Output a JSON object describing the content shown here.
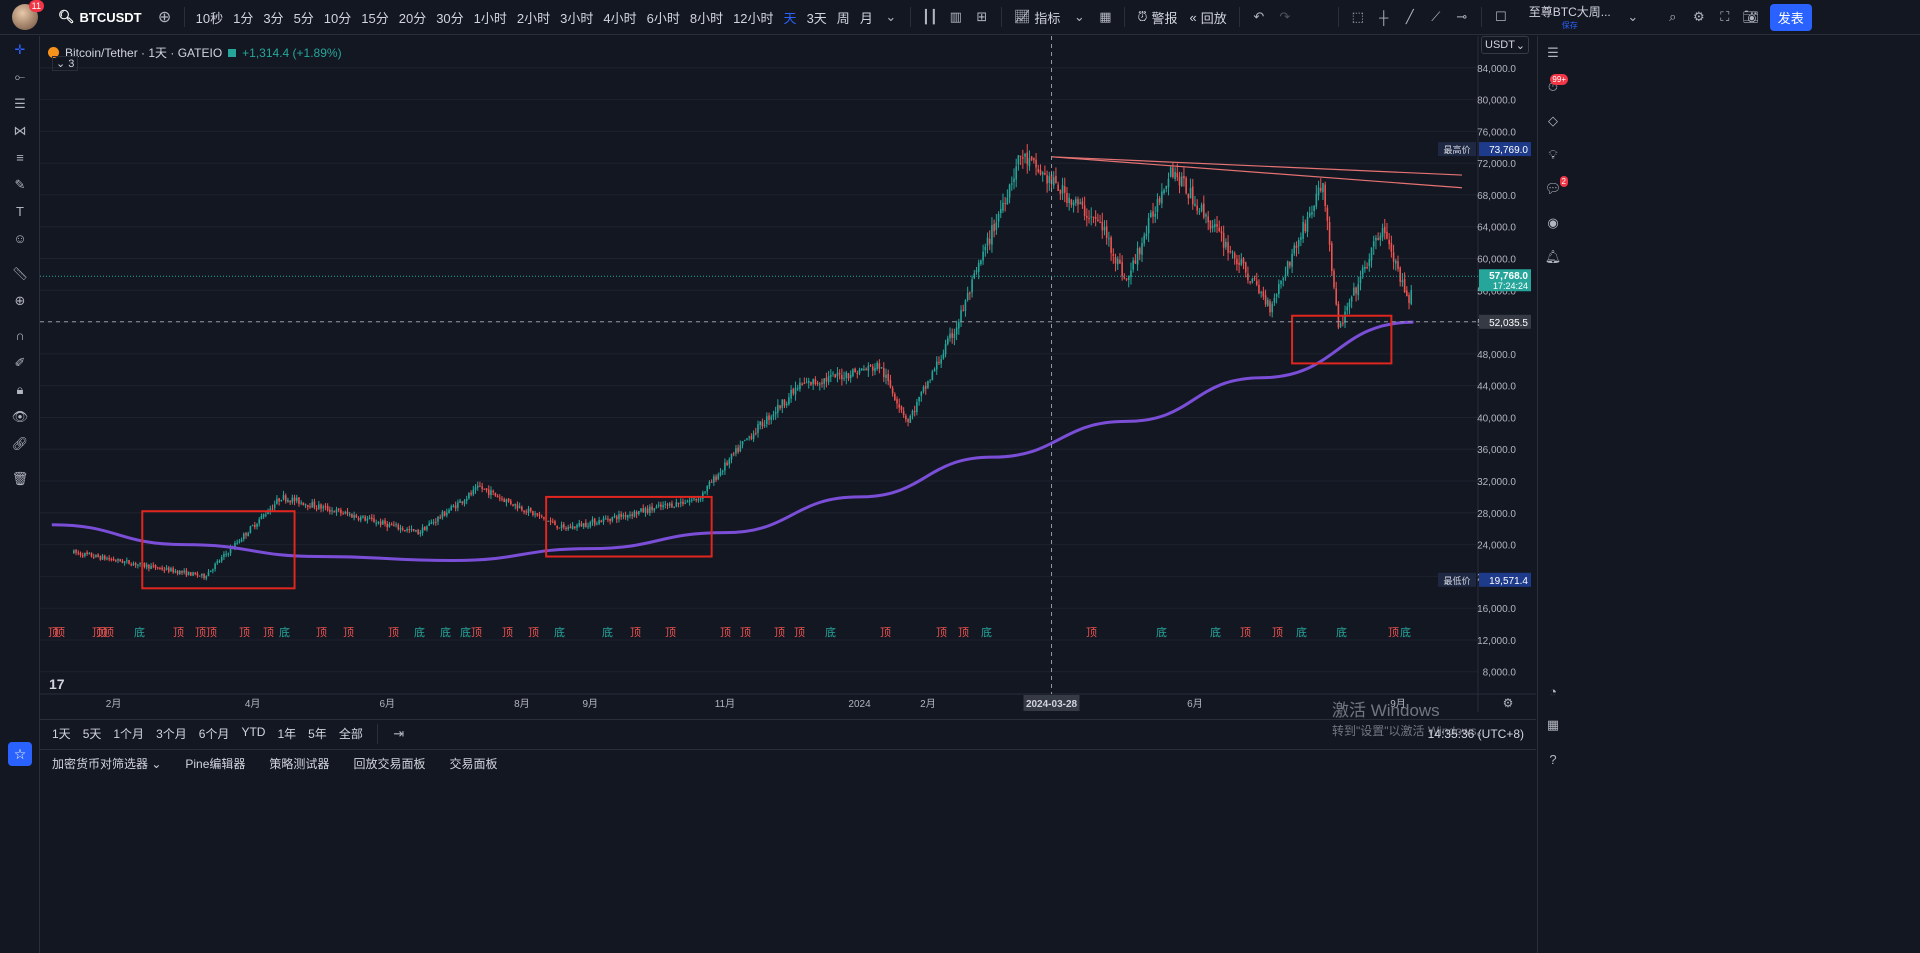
{
  "topbar": {
    "avatar_badge": "11",
    "symbol": "BTCUSDT",
    "timeframes": [
      "10秒",
      "1分",
      "3分",
      "5分",
      "10分",
      "15分",
      "20分",
      "30分",
      "1小时",
      "2小时",
      "3小时",
      "4小时",
      "6小时",
      "8小时",
      "12小时",
      "天",
      "3天",
      "周",
      "月"
    ],
    "active_timeframe": "天",
    "indicators_label": "指标",
    "alert_label": "警报",
    "replay_label": "回放",
    "layout_name": "至尊BTC大周...",
    "layout_status": "保存",
    "publish_label": "发表"
  },
  "legend": {
    "title": "Bitcoin/Tether · 1天 · GATEIO",
    "change": "+1,314.4 (+1.89%)",
    "collapsed_count": "3"
  },
  "price_axis": {
    "currency": "USDT",
    "ticks": [
      "84,000.0",
      "80,000.0",
      "76,000.0",
      "72,000.0",
      "68,000.0",
      "64,000.0",
      "60,000.0",
      "56,000.0",
      "52,000.0",
      "48,000.0",
      "44,000.0",
      "40,000.0",
      "36,000.0",
      "32,000.0",
      "28,000.0",
      "24,000.0",
      "20,000.0",
      "16,000.0",
      "12,000.0",
      "8,000.0"
    ],
    "high_label": "最高价",
    "high_value": "73,769.0",
    "last_price": "57,768.0",
    "countdown": "17:24:24",
    "crosshair_price": "52,035.5",
    "low_label": "最低价",
    "low_value": "19,571.4"
  },
  "time_axis": {
    "labels": [
      "2月",
      "4月",
      "6月",
      "8月",
      "9月",
      "11月",
      "2024",
      "2月",
      "6月",
      "9月"
    ],
    "crosshair_date": "2024-03-28"
  },
  "signals": {
    "top_text": "顶",
    "bottom_text": "底"
  },
  "bottombar": {
    "ranges": [
      "1天",
      "5天",
      "1个月",
      "3个月",
      "6个月",
      "YTD",
      "1年",
      "5年",
      "全部"
    ],
    "clock": "14:35:36 (UTC+8)"
  },
  "panels": [
    "加密货币对筛选器",
    "Pine编辑器",
    "策略测试器",
    "回放交易面板",
    "交易面板"
  ],
  "right_toolbar": {
    "notif_badge": "99+",
    "chat_badge": "2"
  },
  "watermark": {
    "line1": "激活 Windows",
    "line2": "转到\"设置\"以激活 Windows。"
  },
  "colors": {
    "background": "#131722",
    "up": "#26a69a",
    "down": "#ef5350",
    "ma": "#7b4ed8",
    "box": "#e0261e",
    "accent": "#2962ff"
  },
  "chart_data": {
    "type": "candlestick",
    "title": "Bitcoin/Tether · 1天 · GATEIO",
    "ylim": [
      5200,
      88000
    ],
    "key_points": [
      {
        "date": "2023-01-10",
        "price": 23000
      },
      {
        "date": "2023-03-10",
        "price": 20000
      },
      {
        "date": "2023-04-14",
        "price": 30000
      },
      {
        "date": "2023-06-15",
        "price": 25500
      },
      {
        "date": "2023-07-13",
        "price": 31200
      },
      {
        "date": "2023-08-20",
        "price": 26000
      },
      {
        "date": "2023-10-20",
        "price": 29800
      },
      {
        "date": "2023-11-10",
        "price": 37000
      },
      {
        "date": "2023-12-05",
        "price": 44000
      },
      {
        "date": "2024-01-10",
        "price": 46500
      },
      {
        "date": "2024-01-23",
        "price": 39500
      },
      {
        "date": "2024-02-14",
        "price": 51500
      },
      {
        "date": "2024-03-14",
        "price": 73000
      },
      {
        "date": "2024-04-20",
        "price": 64000
      },
      {
        "date": "2024-05-01",
        "price": 57000
      },
      {
        "date": "2024-05-21",
        "price": 71500
      },
      {
        "date": "2024-07-05",
        "price": 54000
      },
      {
        "date": "2024-07-29",
        "price": 69500
      },
      {
        "date": "2024-08-05",
        "price": 51000
      },
      {
        "date": "2024-08-25",
        "price": 64000
      },
      {
        "date": "2024-09-06",
        "price": 54000
      },
      {
        "date": "2024-09-08",
        "price": 57768
      }
    ],
    "moving_average": [
      {
        "date": "2022-12-31",
        "price": 26500
      },
      {
        "date": "2023-03-01",
        "price": 24000
      },
      {
        "date": "2023-05-01",
        "price": 22500
      },
      {
        "date": "2023-07-01",
        "price": 22000
      },
      {
        "date": "2023-09-01",
        "price": 23500
      },
      {
        "date": "2023-11-01",
        "price": 25500
      },
      {
        "date": "2024-01-01",
        "price": 30000
      },
      {
        "date": "2024-03-01",
        "price": 35000
      },
      {
        "date": "2024-05-01",
        "price": 39500
      },
      {
        "date": "2024-07-01",
        "price": 45000
      },
      {
        "date": "2024-09-08",
        "price": 52000
      }
    ]
  }
}
